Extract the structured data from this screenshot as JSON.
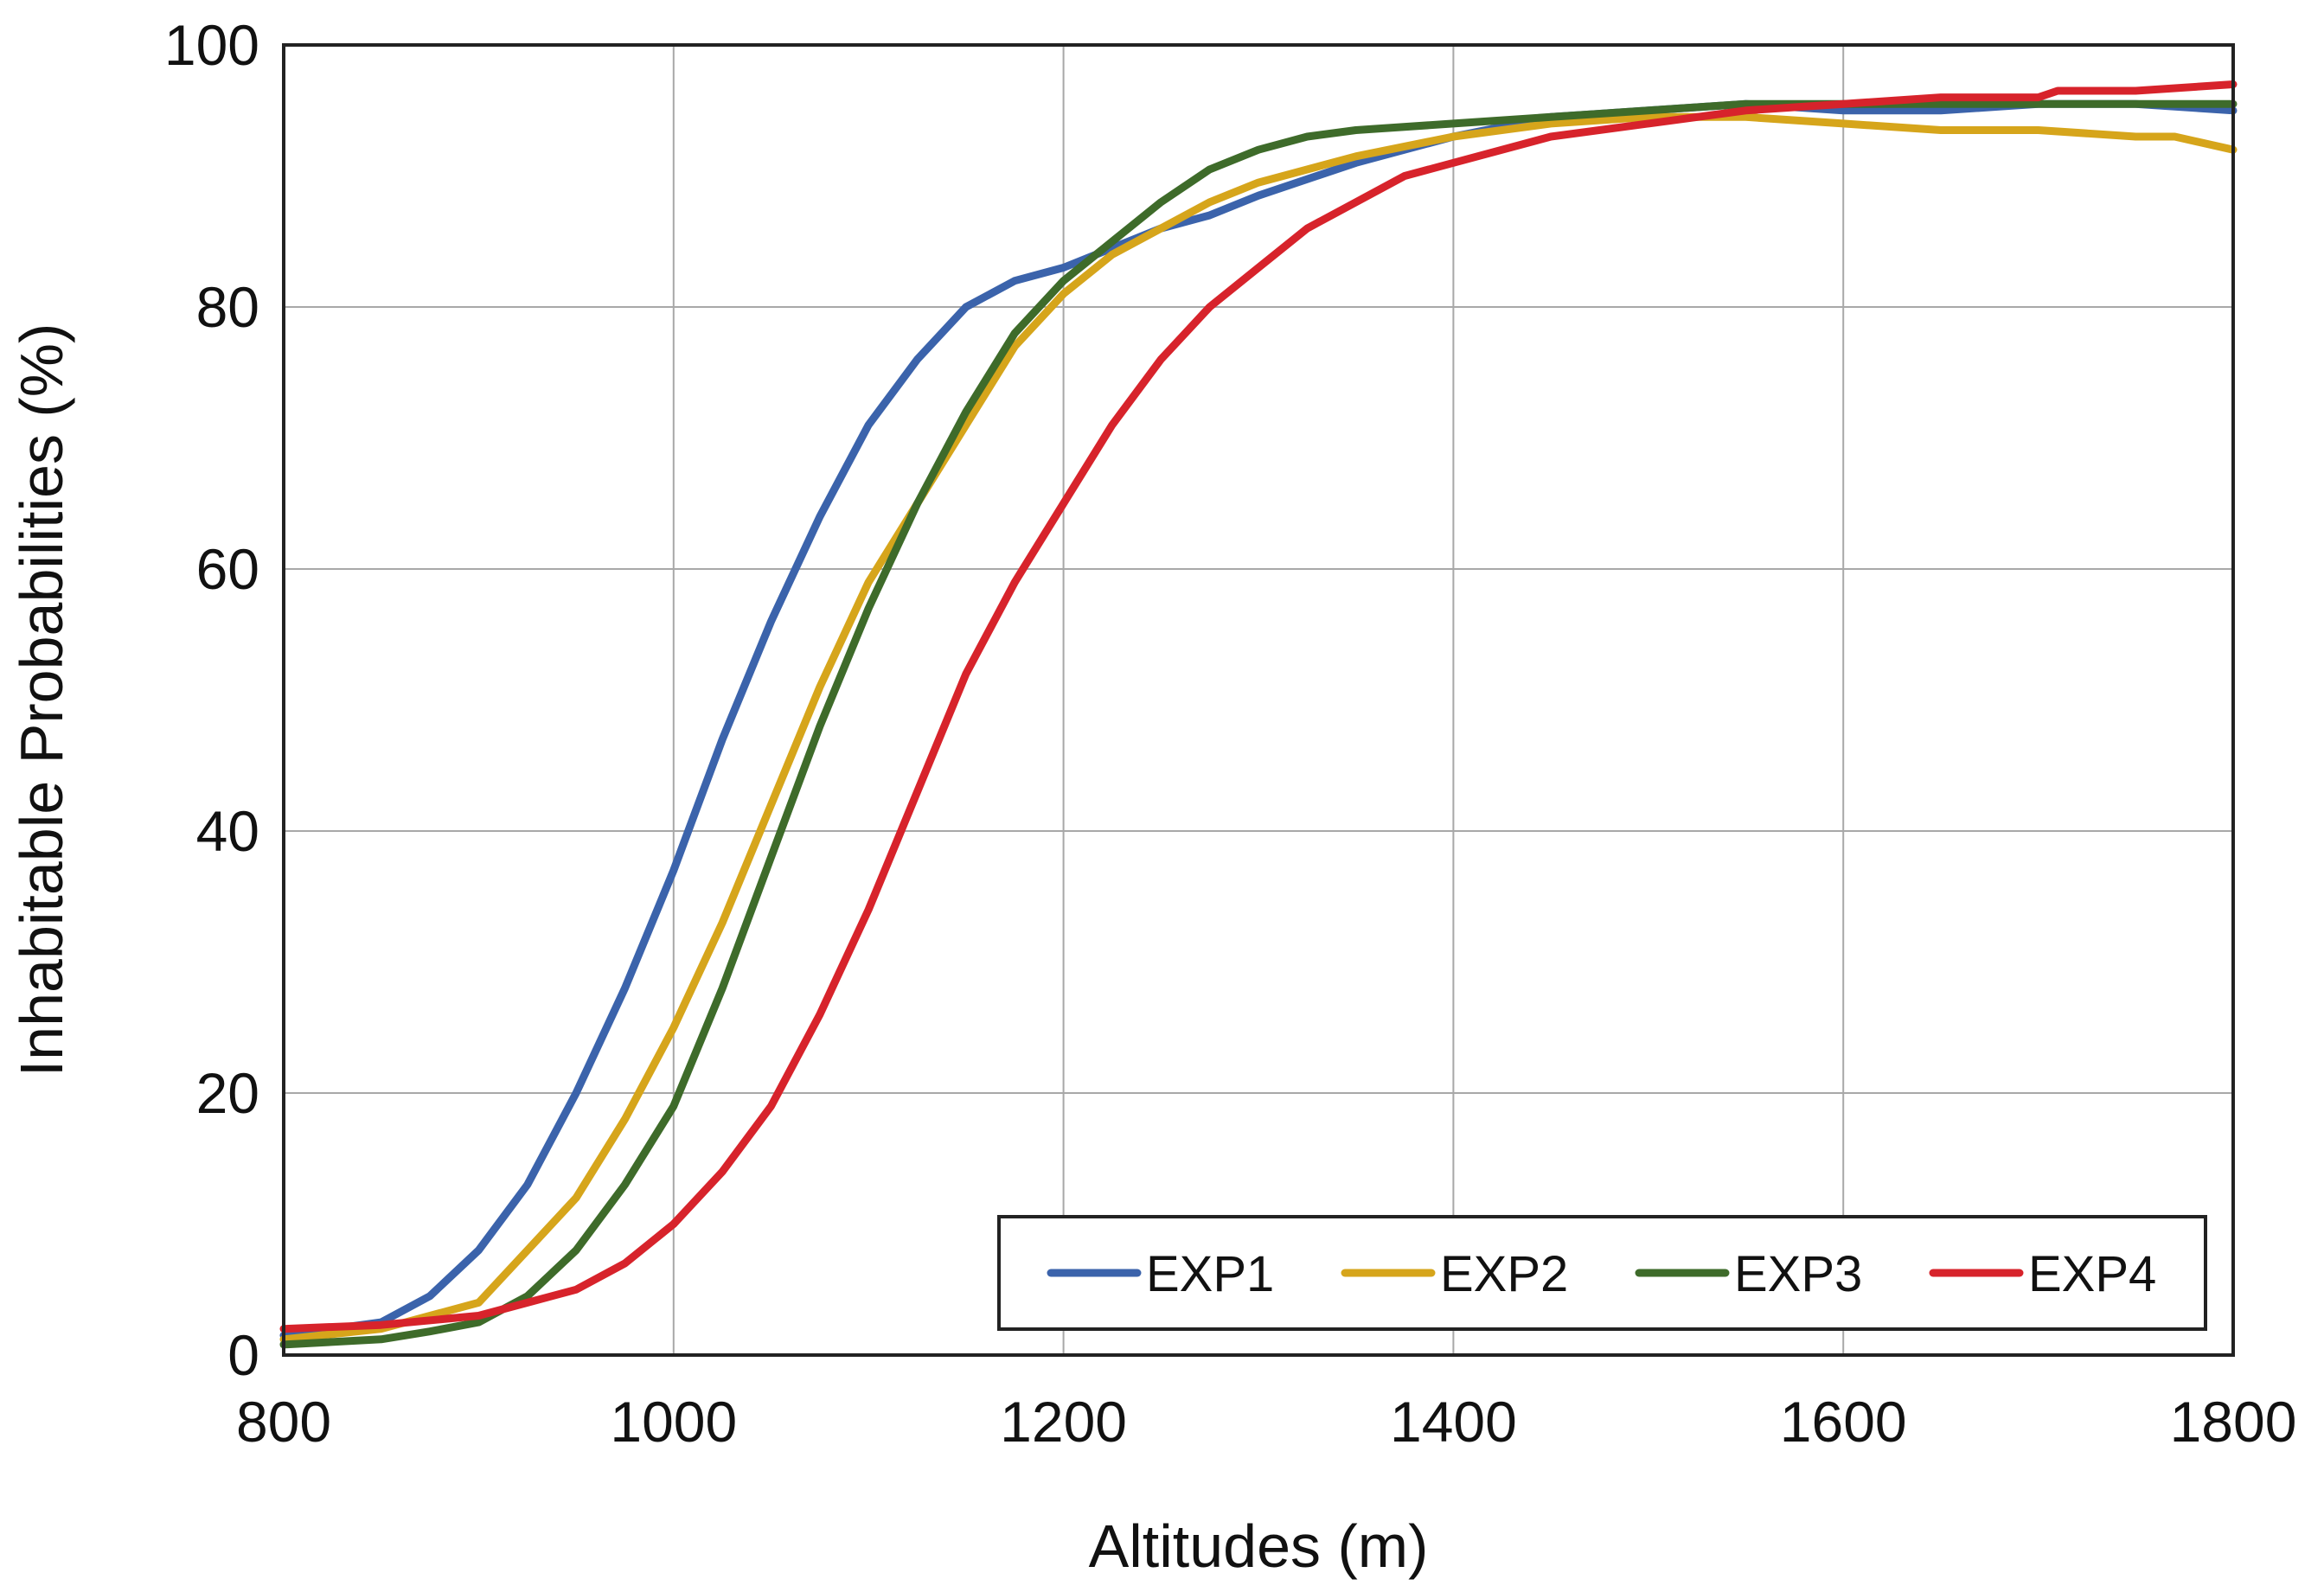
{
  "chart_data": {
    "type": "line",
    "title": "",
    "xlabel": "Altitudes (m)",
    "ylabel": "Inhabitable Probabilities (%)",
    "xlim": [
      800,
      1800
    ],
    "ylim": [
      0,
      100
    ],
    "xticks": [
      800,
      1000,
      1200,
      1400,
      1600,
      1800
    ],
    "yticks": [
      0,
      20,
      40,
      60,
      80,
      100
    ],
    "xtick_labels": [
      "800",
      "1000",
      "1200",
      "1400",
      "1600",
      "1800"
    ],
    "ytick_labels": [
      "0",
      "20",
      "40",
      "60",
      "80",
      "100"
    ],
    "grid": true,
    "legend_position": "bottom-right",
    "series": [
      {
        "name": "EXP1",
        "color": "#3b63ab",
        "x": [
          800,
          850,
          875,
          900,
          925,
          950,
          975,
          1000,
          1025,
          1050,
          1075,
          1100,
          1125,
          1150,
          1175,
          1200,
          1225,
          1250,
          1275,
          1300,
          1350,
          1400,
          1450,
          1500,
          1550,
          1600,
          1650,
          1700,
          1750,
          1800
        ],
        "y": [
          1.5,
          2.5,
          4.5,
          8,
          13,
          20,
          28,
          37,
          47,
          56,
          64,
          71,
          76,
          80,
          82,
          83,
          84.5,
          86,
          87,
          88.5,
          91,
          93,
          94.5,
          95,
          95.5,
          95,
          95,
          95.5,
          95.5,
          95
        ]
      },
      {
        "name": "EXP2",
        "color": "#d6a51b",
        "x": [
          800,
          850,
          900,
          925,
          950,
          975,
          1000,
          1025,
          1050,
          1075,
          1100,
          1125,
          1150,
          1175,
          1200,
          1225,
          1250,
          1275,
          1300,
          1350,
          1400,
          1450,
          1500,
          1550,
          1600,
          1650,
          1700,
          1750,
          1770,
          1800
        ],
        "y": [
          1.2,
          2,
          4,
          8,
          12,
          18,
          25,
          33,
          42,
          51,
          59,
          65,
          71,
          77,
          81,
          84,
          86,
          88,
          89.5,
          91.5,
          93,
          94,
          94.5,
          94.5,
          94,
          93.5,
          93.5,
          93,
          93,
          92
        ]
      },
      {
        "name": "EXP3",
        "color": "#3e6b2a",
        "x": [
          800,
          850,
          875,
          900,
          925,
          950,
          975,
          1000,
          1025,
          1050,
          1075,
          1100,
          1125,
          1150,
          1175,
          1200,
          1225,
          1250,
          1275,
          1300,
          1325,
          1350,
          1400,
          1450,
          1500,
          1550,
          1600,
          1650,
          1700,
          1750,
          1800
        ],
        "y": [
          0.8,
          1.2,
          1.8,
          2.5,
          4.5,
          8,
          13,
          19,
          28,
          38,
          48,
          57,
          65,
          72,
          78,
          82,
          85,
          88,
          90.5,
          92,
          93,
          93.5,
          94,
          94.5,
          95,
          95.5,
          95.5,
          95.5,
          95.5,
          95.5,
          95.5
        ]
      },
      {
        "name": "EXP4",
        "color": "#d7232b",
        "x": [
          800,
          850,
          900,
          925,
          950,
          975,
          1000,
          1025,
          1050,
          1075,
          1100,
          1125,
          1150,
          1175,
          1200,
          1225,
          1250,
          1275,
          1300,
          1325,
          1350,
          1375,
          1400,
          1450,
          1500,
          1550,
          1600,
          1650,
          1700,
          1710,
          1750,
          1800
        ],
        "y": [
          2,
          2.3,
          3,
          4,
          5,
          7,
          10,
          14,
          19,
          26,
          34,
          43,
          52,
          59,
          65,
          71,
          76,
          80,
          83,
          86,
          88,
          90,
          91,
          93,
          94,
          95,
          95.5,
          96,
          96,
          96.5,
          96.5,
          97
        ]
      }
    ]
  }
}
